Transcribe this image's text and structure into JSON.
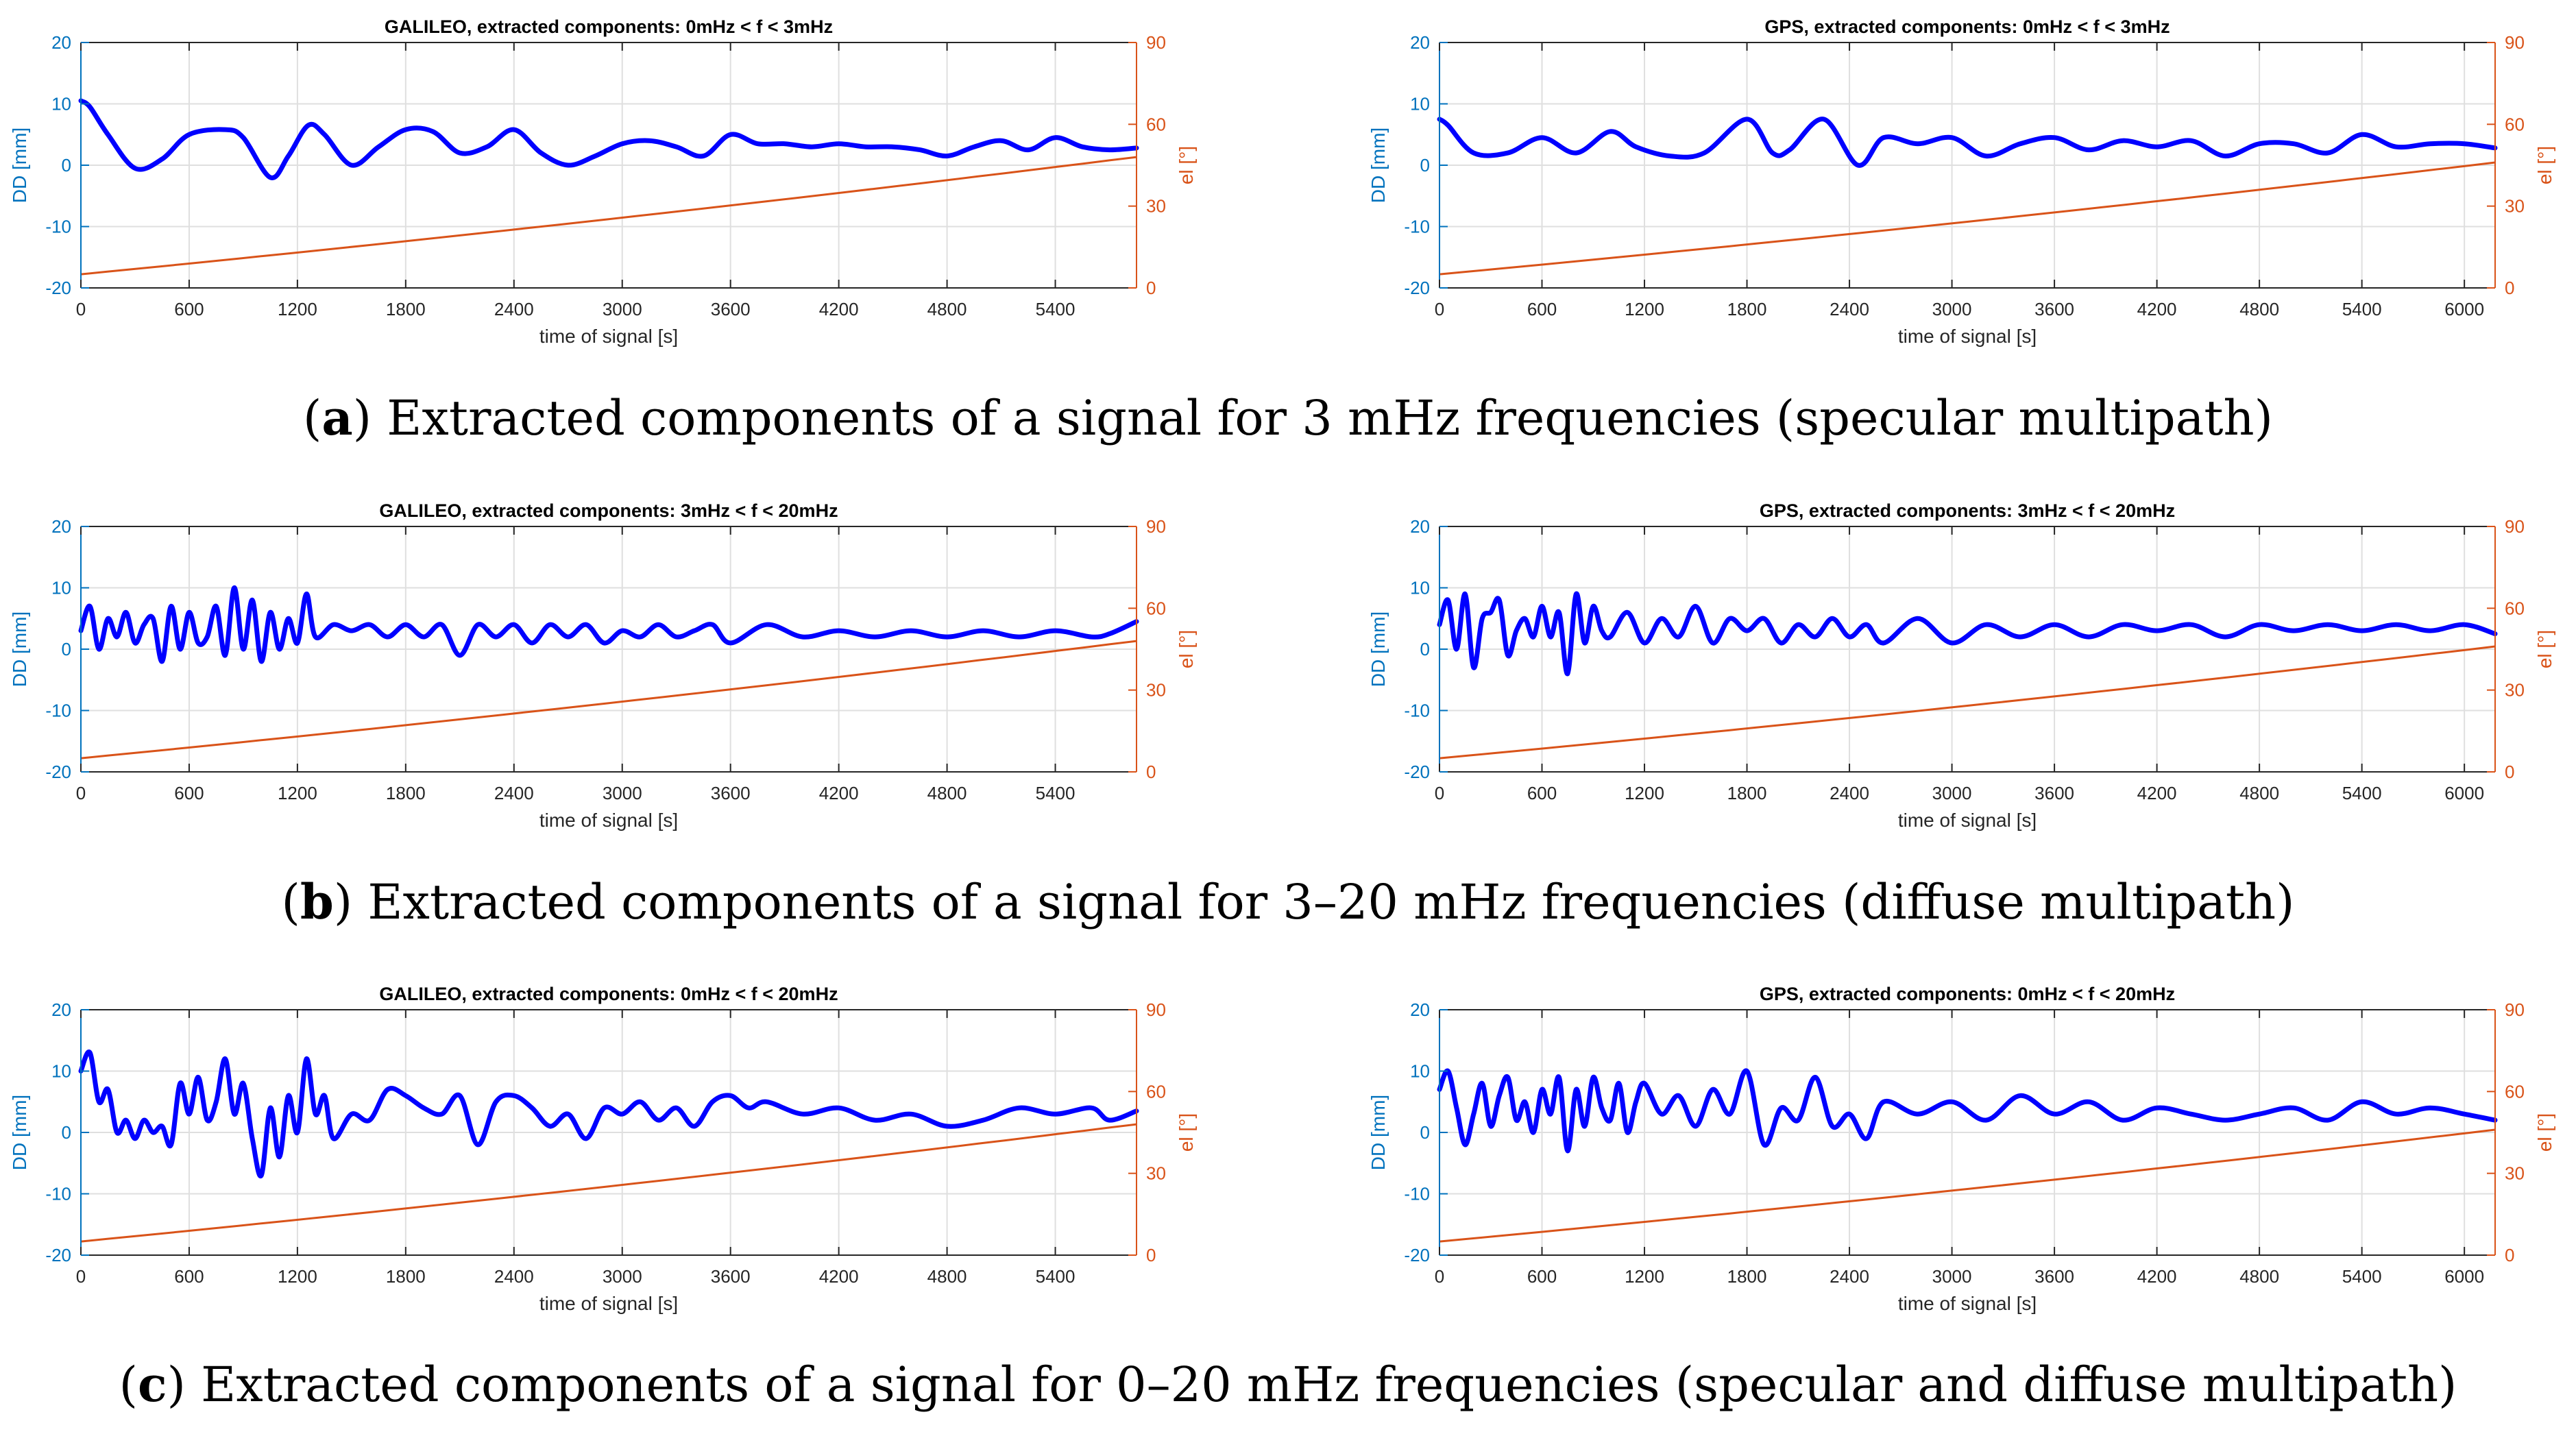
{
  "colors": {
    "dd": "#0000ff",
    "el": "#d95319",
    "dd_axis": "#0072bd",
    "el_axis": "#d95319",
    "grid": "#dfdfdf",
    "axis": "#262626"
  },
  "captions": [
    {
      "letter": "a",
      "text": "Extracted components of a signal for 3 mHz frequencies (specular multipath)"
    },
    {
      "letter": "b",
      "text": "Extracted components of a signal for 3–20 mHz frequencies (diffuse multipath)"
    },
    {
      "letter": "c",
      "text": "Extracted components of a signal for 0–20 mHz frequencies (specular and diffuse multipath)"
    }
  ],
  "chart_data": [
    {
      "type": "line",
      "title": "GALILEO, extracted components: 0mHz < f < 3mHz",
      "xlabel": "time of signal [s]",
      "ylabel": "DD [mm]",
      "y2label": "el [°]",
      "xlim": [
        0,
        5850
      ],
      "ylim": [
        -20,
        20
      ],
      "y2lim": [
        0,
        90
      ],
      "xticks": [
        0,
        600,
        1200,
        1800,
        2400,
        3000,
        3600,
        4200,
        4800,
        5400
      ],
      "yticks": [
        -20,
        -10,
        0,
        10,
        20
      ],
      "y2ticks": [
        0,
        30,
        60,
        90
      ],
      "grid": true,
      "series": [
        {
          "name": "DD",
          "axis": "left",
          "x": [
            0,
            50,
            150,
            300,
            450,
            600,
            800,
            900,
            1050,
            1150,
            1260,
            1350,
            1500,
            1650,
            1800,
            1950,
            2100,
            2250,
            2400,
            2550,
            2700,
            2850,
            3000,
            3150,
            3300,
            3450,
            3600,
            3750,
            3900,
            4050,
            4200,
            4350,
            4500,
            4650,
            4800,
            4950,
            5100,
            5250,
            5400,
            5550,
            5700,
            5850
          ],
          "values": [
            10.5,
            9.5,
            5,
            -0.5,
            1,
            5,
            5.8,
            4.5,
            -2,
            1.5,
            6.5,
            5,
            0,
            3,
            5.8,
            5.5,
            2,
            3,
            5.8,
            2,
            0,
            1.5,
            3.5,
            4,
            3,
            1.5,
            5,
            3.5,
            3.5,
            3,
            3.5,
            3,
            3,
            2.5,
            1.5,
            3,
            4,
            2.5,
            4.5,
            3,
            2.5,
            2.8
          ]
        },
        {
          "name": "el",
          "axis": "right",
          "x": [
            0,
            5850
          ],
          "values": [
            5,
            48
          ]
        }
      ]
    },
    {
      "type": "line",
      "title": "GPS, extracted components: 0mHz < f < 3mHz",
      "xlabel": "time of signal [s]",
      "ylabel": "DD [mm]",
      "y2label": "el [°]",
      "xlim": [
        0,
        6180
      ],
      "ylim": [
        -20,
        20
      ],
      "y2lim": [
        0,
        90
      ],
      "xticks": [
        0,
        600,
        1200,
        1800,
        2400,
        3000,
        3600,
        4200,
        4800,
        5400,
        6000
      ],
      "yticks": [
        -20,
        -10,
        0,
        10,
        20
      ],
      "y2ticks": [
        0,
        30,
        60,
        90
      ],
      "grid": true,
      "series": [
        {
          "name": "DD",
          "axis": "left",
          "x": [
            0,
            50,
            200,
            400,
            600,
            800,
            1000,
            1150,
            1350,
            1550,
            1800,
            1950,
            2050,
            2250,
            2450,
            2600,
            2800,
            3000,
            3200,
            3400,
            3600,
            3800,
            4000,
            4200,
            4400,
            4600,
            4800,
            5000,
            5200,
            5400,
            5600,
            5800,
            6000,
            6180
          ],
          "values": [
            7.5,
            6.5,
            2,
            2,
            4.5,
            2,
            5.5,
            3,
            1.5,
            2,
            7.5,
            2,
            2.5,
            7.5,
            0,
            4.5,
            3.5,
            4.5,
            1.5,
            3.5,
            4.5,
            2.5,
            4,
            3,
            4,
            1.5,
            3.5,
            3.5,
            2,
            5,
            3,
            3.5,
            3.5,
            2.8
          ]
        },
        {
          "name": "el",
          "axis": "right",
          "x": [
            0,
            6180
          ],
          "values": [
            5,
            46
          ]
        }
      ]
    },
    {
      "type": "line",
      "title": "GALILEO, extracted components: 3mHz < f < 20mHz",
      "xlabel": "time of signal [s]",
      "ylabel": "DD [mm]",
      "y2label": "el [°]",
      "xlim": [
        0,
        5850
      ],
      "ylim": [
        -20,
        20
      ],
      "y2lim": [
        0,
        90
      ],
      "xticks": [
        0,
        600,
        1200,
        1800,
        2400,
        3000,
        3600,
        4200,
        4800,
        5400
      ],
      "yticks": [
        -20,
        -10,
        0,
        10,
        20
      ],
      "y2ticks": [
        0,
        30,
        60,
        90
      ],
      "grid": true,
      "series": [
        {
          "name": "DD",
          "axis": "left",
          "x": [
            0,
            50,
            100,
            150,
            200,
            250,
            300,
            350,
            400,
            450,
            500,
            550,
            600,
            650,
            700,
            750,
            800,
            850,
            900,
            950,
            1000,
            1050,
            1100,
            1150,
            1200,
            1250,
            1300,
            1400,
            1500,
            1600,
            1700,
            1800,
            1900,
            2000,
            2100,
            2200,
            2300,
            2400,
            2500,
            2600,
            2700,
            2800,
            2900,
            3000,
            3100,
            3200,
            3300,
            3400,
            3500,
            3600,
            3800,
            4000,
            4200,
            4400,
            4600,
            4800,
            5000,
            5200,
            5400,
            5600,
            5700,
            5850
          ],
          "values": [
            3,
            7,
            0,
            5,
            2,
            6,
            1,
            4,
            5,
            -2,
            7,
            0,
            6,
            1,
            2,
            7,
            -1,
            10,
            0,
            8,
            -2,
            6,
            0,
            5,
            1,
            9,
            2,
            4,
            3,
            4,
            2,
            4,
            2,
            4,
            -1,
            4,
            2,
            4,
            1,
            4,
            2,
            4,
            1,
            3,
            2,
            4,
            2,
            3,
            4,
            1,
            4,
            2,
            3,
            2,
            3,
            2,
            3,
            2,
            3,
            2,
            2.5,
            4.5
          ]
        },
        {
          "name": "el",
          "axis": "right",
          "x": [
            0,
            5850
          ],
          "values": [
            5,
            48
          ]
        }
      ]
    },
    {
      "type": "line",
      "title": "GPS, extracted components: 3mHz < f < 20mHz",
      "xlabel": "time of signal [s]",
      "ylabel": "DD [mm]",
      "y2label": "el [°]",
      "xlim": [
        0,
        6180
      ],
      "ylim": [
        -20,
        20
      ],
      "y2lim": [
        0,
        90
      ],
      "xticks": [
        0,
        600,
        1200,
        1800,
        2400,
        3000,
        3600,
        4200,
        4800,
        5400,
        6000
      ],
      "yticks": [
        -20,
        -10,
        0,
        10,
        20
      ],
      "y2ticks": [
        0,
        30,
        60,
        90
      ],
      "grid": true,
      "series": [
        {
          "name": "DD",
          "axis": "left",
          "x": [
            0,
            50,
            100,
            150,
            200,
            250,
            300,
            350,
            400,
            450,
            500,
            550,
            600,
            650,
            700,
            750,
            800,
            850,
            900,
            950,
            1000,
            1100,
            1200,
            1300,
            1400,
            1500,
            1600,
            1700,
            1800,
            1900,
            2000,
            2100,
            2200,
            2300,
            2400,
            2500,
            2600,
            2800,
            3000,
            3200,
            3400,
            3600,
            3800,
            4000,
            4200,
            4400,
            4600,
            4800,
            5000,
            5200,
            5400,
            5600,
            5800,
            6000,
            6180
          ],
          "values": [
            4,
            8,
            0,
            9,
            -3,
            5,
            6,
            8,
            -1,
            3,
            5,
            2,
            7,
            2,
            6,
            -4,
            9,
            1,
            7,
            3,
            2,
            6,
            1,
            5,
            2,
            7,
            1,
            5,
            3,
            5,
            1,
            4,
            2,
            5,
            2,
            4,
            1,
            5,
            1,
            4,
            2,
            4,
            2,
            4,
            3,
            4,
            2,
            4,
            3,
            4,
            3,
            4,
            3,
            4,
            2.5
          ]
        },
        {
          "name": "el",
          "axis": "right",
          "x": [
            0,
            6180
          ],
          "values": [
            5,
            46
          ]
        }
      ]
    },
    {
      "type": "line",
      "title": "GALILEO, extracted components: 0mHz < f < 20mHz",
      "xlabel": "time of signal [s]",
      "ylabel": "DD [mm]",
      "y2label": "el [°]",
      "xlim": [
        0,
        5850
      ],
      "ylim": [
        -20,
        20
      ],
      "y2lim": [
        0,
        90
      ],
      "xticks": [
        0,
        600,
        1200,
        1800,
        2400,
        3000,
        3600,
        4200,
        4800,
        5400
      ],
      "yticks": [
        -20,
        -10,
        0,
        10,
        20
      ],
      "y2ticks": [
        0,
        30,
        60,
        90
      ],
      "grid": true,
      "series": [
        {
          "name": "DD",
          "axis": "left",
          "x": [
            0,
            50,
            100,
            150,
            200,
            250,
            300,
            350,
            400,
            450,
            500,
            550,
            600,
            650,
            700,
            750,
            800,
            850,
            900,
            950,
            1000,
            1050,
            1100,
            1150,
            1200,
            1250,
            1300,
            1350,
            1400,
            1500,
            1600,
            1700,
            1800,
            1900,
            2000,
            2100,
            2200,
            2300,
            2400,
            2500,
            2600,
            2700,
            2800,
            2900,
            3000,
            3100,
            3200,
            3300,
            3400,
            3500,
            3600,
            3700,
            3800,
            4000,
            4200,
            4400,
            4600,
            4800,
            5000,
            5200,
            5400,
            5600,
            5700,
            5850
          ],
          "values": [
            10,
            13,
            5,
            7,
            0,
            2,
            -1,
            2,
            0,
            1,
            -2,
            8,
            3,
            9,
            2,
            5,
            12,
            3,
            8,
            -1,
            -7,
            4,
            -4,
            6,
            0,
            12,
            3,
            6,
            -1,
            3,
            2,
            7,
            6,
            4,
            3,
            6,
            -2,
            5,
            6,
            4,
            1,
            3,
            -1,
            4,
            3,
            5,
            2,
            4,
            1,
            5,
            6,
            4,
            5,
            3,
            4,
            2,
            3,
            1,
            2,
            4,
            3,
            4,
            2,
            3.5
          ]
        },
        {
          "name": "el",
          "axis": "right",
          "x": [
            0,
            5850
          ],
          "values": [
            5,
            48
          ]
        }
      ]
    },
    {
      "type": "line",
      "title": "GPS, extracted components: 0mHz < f < 20mHz",
      "xlabel": "time of signal [s]",
      "ylabel": "DD [mm]",
      "y2label": "el [°]",
      "xlim": [
        0,
        6180
      ],
      "ylim": [
        -20,
        20
      ],
      "y2lim": [
        0,
        90
      ],
      "xticks": [
        0,
        600,
        1200,
        1800,
        2400,
        3000,
        3600,
        4200,
        4800,
        5400,
        6000
      ],
      "yticks": [
        -20,
        -10,
        0,
        10,
        20
      ],
      "y2ticks": [
        0,
        30,
        60,
        90
      ],
      "grid": true,
      "series": [
        {
          "name": "DD",
          "axis": "left",
          "x": [
            0,
            50,
            100,
            150,
            200,
            250,
            300,
            350,
            400,
            450,
            500,
            550,
            600,
            650,
            700,
            750,
            800,
            850,
            900,
            950,
            1000,
            1050,
            1100,
            1150,
            1200,
            1300,
            1400,
            1500,
            1600,
            1700,
            1800,
            1900,
            2000,
            2100,
            2200,
            2300,
            2400,
            2500,
            2600,
            2800,
            3000,
            3200,
            3400,
            3600,
            3800,
            4000,
            4200,
            4400,
            4600,
            4800,
            5000,
            5200,
            5400,
            5600,
            5800,
            6000,
            6180
          ],
          "values": [
            7,
            10,
            4,
            -2,
            3,
            8,
            1,
            6,
            9,
            2,
            5,
            0,
            7,
            3,
            9,
            -3,
            7,
            1,
            9,
            4,
            2,
            8,
            0,
            5,
            8,
            3,
            6,
            1,
            7,
            3,
            10,
            -2,
            4,
            2,
            9,
            1,
            3,
            -1,
            5,
            3,
            5,
            2,
            6,
            3,
            5,
            2,
            4,
            3,
            2,
            3,
            4,
            2,
            5,
            3,
            4,
            3,
            2
          ]
        },
        {
          "name": "el",
          "axis": "right",
          "x": [
            0,
            6180
          ],
          "values": [
            5,
            46
          ]
        }
      ]
    }
  ]
}
